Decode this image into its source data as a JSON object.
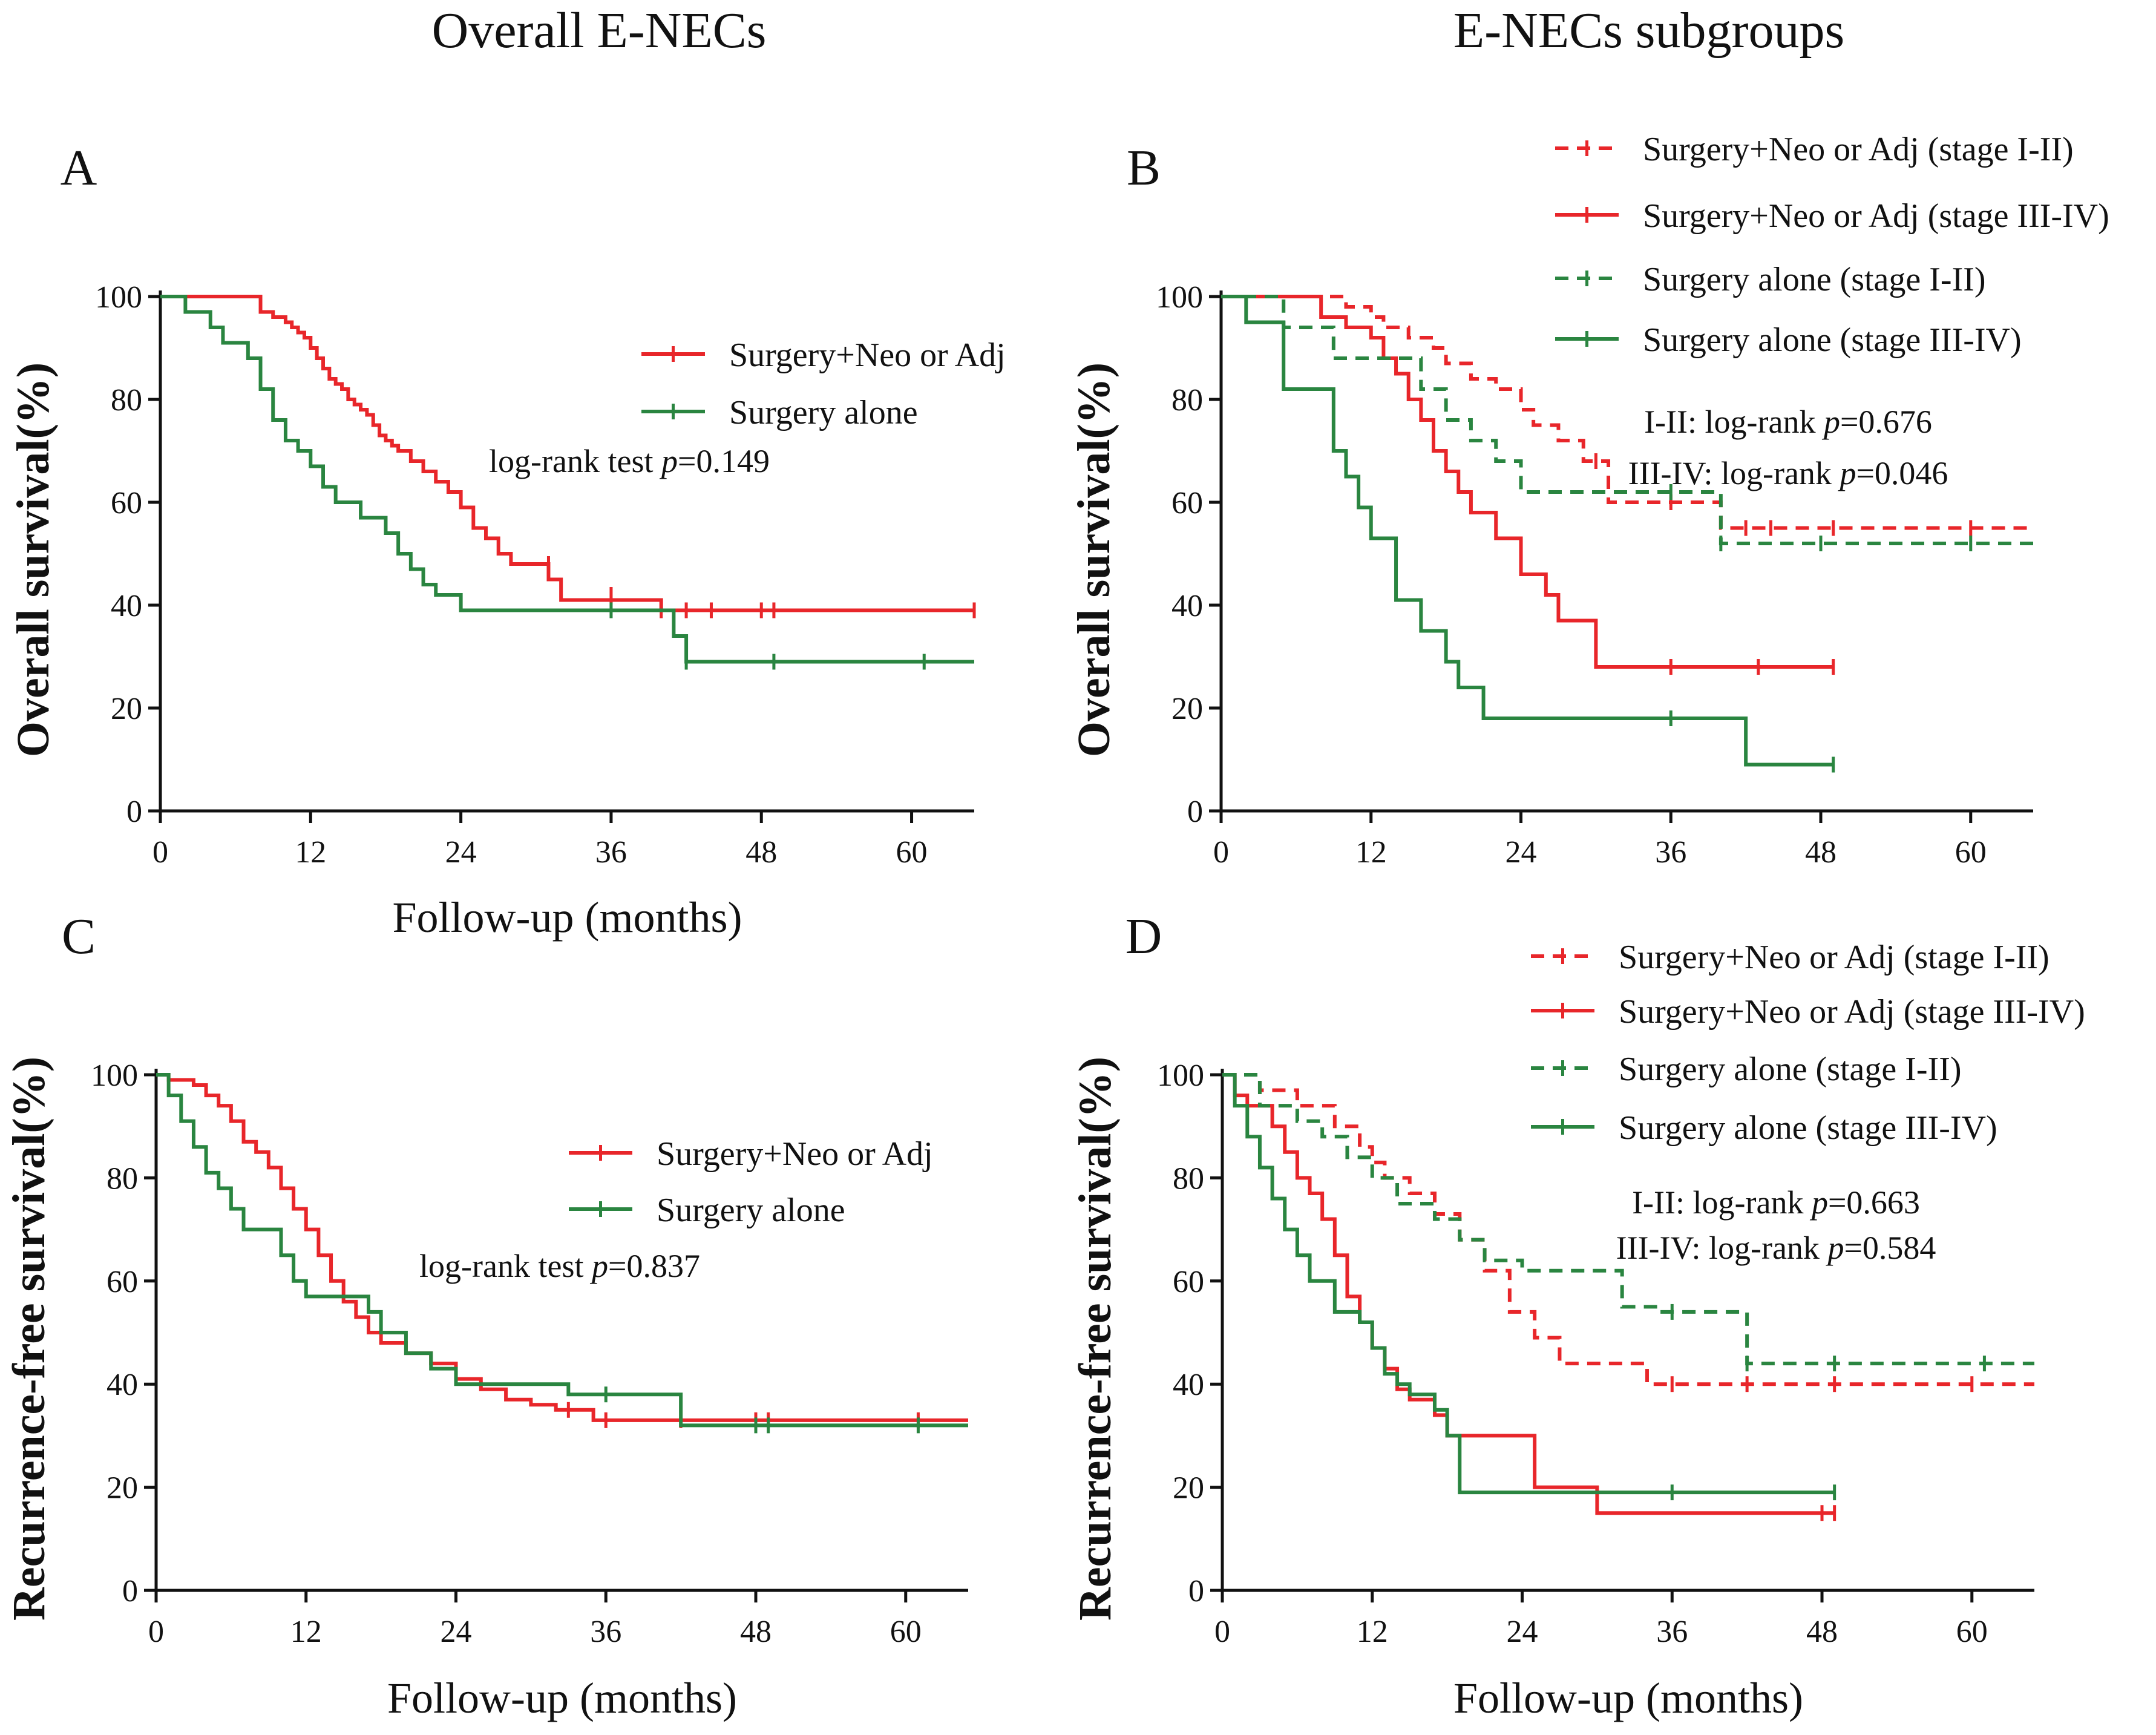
{
  "titles": {
    "left": "Overall E-NECs",
    "right": "E-NECs subgroups"
  },
  "colors": {
    "red": "#e8262a",
    "green": "#2a8540"
  },
  "chart_data": [
    {
      "panel": "A",
      "type": "line",
      "step": true,
      "xlabel": "Follow-up (months)",
      "ylabel": "Overall survival(%)",
      "xlim": [
        0,
        65
      ],
      "ylim": [
        0,
        100
      ],
      "xticks": [
        "0",
        "12",
        "24",
        "36",
        "48",
        "60"
      ],
      "yticks": [
        "0",
        "20",
        "40",
        "60",
        "80",
        "100"
      ],
      "legend_position": "top-right",
      "annotations": [
        {
          "prefix": "log-rank test  ",
          "p": "p",
          "value": "=0.149"
        }
      ],
      "series": [
        {
          "name": "Surgery+Neo or Adj",
          "color": "red",
          "dash": false,
          "x": [
            0,
            8,
            9,
            10,
            10.5,
            11,
            11.5,
            12,
            12.5,
            13,
            13.5,
            14,
            14.5,
            15,
            15.5,
            16,
            16.5,
            17,
            17.5,
            18,
            18.5,
            19,
            20,
            21,
            22,
            23,
            24,
            25,
            26,
            27,
            28,
            30,
            31,
            32,
            40,
            65
          ],
          "y": [
            100,
            97,
            96,
            95,
            94,
            93,
            92,
            90,
            88,
            86,
            84,
            83,
            82,
            80,
            79,
            78,
            77,
            75,
            73,
            72,
            71,
            70,
            68,
            66,
            64,
            62,
            59,
            55,
            53,
            50,
            48,
            48,
            45,
            41,
            39,
            39
          ],
          "censor_x": [
            31,
            36,
            40,
            42,
            44,
            48,
            49,
            65
          ],
          "censor_y": [
            48,
            42,
            39,
            39,
            39,
            39,
            39,
            39
          ]
        },
        {
          "name": "Surgery alone",
          "color": "green",
          "dash": false,
          "x": [
            0,
            2,
            4,
            5,
            7,
            8,
            9,
            10,
            11,
            12,
            13,
            14,
            16,
            18,
            19,
            20,
            21,
            22,
            24,
            40,
            41,
            42,
            65
          ],
          "y": [
            100,
            97,
            94,
            91,
            88,
            82,
            76,
            72,
            70,
            67,
            63,
            60,
            57,
            54,
            50,
            47,
            44,
            42,
            39,
            39,
            34,
            29,
            29
          ],
          "censor_x": [
            36,
            42,
            49,
            61
          ],
          "censor_y": [
            39,
            29,
            29,
            29
          ]
        }
      ]
    },
    {
      "panel": "B",
      "type": "line",
      "step": true,
      "xlabel": "",
      "ylabel": "Overall survival(%)",
      "xlim": [
        0,
        65
      ],
      "ylim": [
        0,
        100
      ],
      "xticks": [
        "0",
        "12",
        "24",
        "36",
        "48",
        "60"
      ],
      "yticks": [
        "0",
        "20",
        "40",
        "60",
        "80",
        "100"
      ],
      "legend_position": "top-right",
      "annotations": [
        {
          "prefix": "I-II: log-rank ",
          "p": "p",
          "value": "=0.676"
        },
        {
          "prefix": "III-IV: log-rank ",
          "p": "p",
          "value": "=0.046"
        }
      ],
      "series": [
        {
          "name": "Surgery+Neo or Adj (stage I-II)",
          "color": "red",
          "dash": true,
          "x": [
            0,
            8,
            10,
            12,
            13,
            15,
            17,
            18,
            20,
            22,
            24,
            25,
            27,
            29,
            31,
            40,
            65
          ],
          "y": [
            100,
            100,
            98,
            96,
            94,
            92,
            90,
            87,
            84,
            82,
            78,
            75,
            72,
            68,
            60,
            55,
            55
          ],
          "censor_x": [
            30,
            36,
            42,
            44,
            49,
            60
          ],
          "censor_y": [
            68,
            60,
            55,
            55,
            55,
            55
          ]
        },
        {
          "name": "Surgery+Neo or Adj (stage III-IV)",
          "color": "red",
          "dash": false,
          "x": [
            0,
            8,
            10,
            12,
            13,
            14,
            15,
            16,
            17,
            18,
            19,
            20,
            22,
            24,
            26,
            27,
            30,
            49
          ],
          "y": [
            100,
            96,
            94,
            92,
            88,
            85,
            80,
            76,
            70,
            66,
            62,
            58,
            53,
            46,
            42,
            37,
            28,
            28
          ],
          "censor_x": [
            36,
            43,
            49
          ],
          "censor_y": [
            28,
            28,
            28
          ]
        },
        {
          "name": "Surgery alone (stage I-II)",
          "color": "green",
          "dash": true,
          "x": [
            0,
            2,
            5,
            9,
            12,
            16,
            18,
            20,
            22,
            24,
            36,
            40,
            65
          ],
          "y": [
            100,
            100,
            94,
            88,
            88,
            82,
            76,
            72,
            68,
            62,
            62,
            52,
            52
          ],
          "censor_x": [
            36,
            40,
            48,
            60
          ],
          "censor_y": [
            62,
            52,
            52,
            52
          ]
        },
        {
          "name": "Surgery alone (stage III-IV)",
          "color": "green",
          "dash": false,
          "x": [
            0,
            2,
            5,
            9,
            10,
            11,
            12,
            14,
            16,
            18,
            19,
            21,
            36,
            42,
            49
          ],
          "y": [
            100,
            95,
            82,
            70,
            65,
            59,
            53,
            41,
            35,
            29,
            24,
            18,
            18,
            9,
            9
          ],
          "censor_x": [
            36,
            49
          ],
          "censor_y": [
            18,
            9
          ]
        }
      ]
    },
    {
      "panel": "C",
      "type": "line",
      "step": true,
      "xlabel": "Follow-up (months)",
      "ylabel": "Recurrence-free survival(%)",
      "xlim": [
        0,
        65
      ],
      "ylim": [
        0,
        100
      ],
      "xticks": [
        "0",
        "12",
        "24",
        "36",
        "48",
        "60"
      ],
      "yticks": [
        "0",
        "20",
        "40",
        "60",
        "80",
        "100"
      ],
      "legend_position": "top-right",
      "annotations": [
        {
          "prefix": "log-rank test  ",
          "p": "p",
          "value": "=0.837"
        }
      ],
      "series": [
        {
          "name": "Surgery+Neo or Adj",
          "color": "red",
          "dash": false,
          "x": [
            0,
            1,
            3,
            4,
            5,
            6,
            7,
            8,
            9,
            10,
            11,
            12,
            13,
            14,
            15,
            16,
            17,
            18,
            20,
            22,
            24,
            26,
            28,
            30,
            32,
            35,
            65
          ],
          "y": [
            100,
            99,
            98,
            96,
            94,
            91,
            87,
            85,
            82,
            78,
            74,
            70,
            65,
            60,
            56,
            53,
            50,
            48,
            46,
            44,
            41,
            39,
            37,
            36,
            35,
            33,
            33
          ],
          "censor_x": [
            33,
            36,
            42,
            48,
            49,
            61
          ],
          "censor_y": [
            35,
            33,
            33,
            33,
            33,
            33
          ]
        },
        {
          "name": "Surgery alone",
          "color": "green",
          "dash": false,
          "x": [
            0,
            1,
            2,
            3,
            4,
            5,
            6,
            7,
            10,
            11,
            12,
            14,
            17,
            18,
            20,
            22,
            24,
            33,
            35,
            42,
            65
          ],
          "y": [
            100,
            96,
            91,
            86,
            81,
            78,
            74,
            70,
            65,
            60,
            57,
            57,
            54,
            50,
            46,
            43,
            40,
            38,
            38,
            32,
            32
          ],
          "censor_x": [
            36,
            48,
            49,
            61
          ],
          "censor_y": [
            38,
            32,
            32,
            32
          ]
        }
      ]
    },
    {
      "panel": "D",
      "type": "line",
      "step": true,
      "xlabel": "Follow-up (months)",
      "ylabel": "Recurrence-free survival(%)",
      "xlim": [
        0,
        65
      ],
      "ylim": [
        0,
        100
      ],
      "xticks": [
        "0",
        "12",
        "24",
        "36",
        "48",
        "60"
      ],
      "yticks": [
        "0",
        "20",
        "40",
        "60",
        "80",
        "100"
      ],
      "legend_position": "top-right",
      "annotations": [
        {
          "prefix": "I-II: log-rank ",
          "p": "p",
          "value": "=0.663"
        },
        {
          "prefix": "III-IV: log-rank ",
          "p": "p",
          "value": "=0.584"
        }
      ],
      "series": [
        {
          "name": "Surgery+Neo or Adj (stage I-II)",
          "color": "red",
          "dash": true,
          "x": [
            0,
            3,
            6,
            9,
            11,
            12,
            13,
            15,
            17,
            19,
            21,
            23,
            25,
            27,
            34,
            42,
            65
          ],
          "y": [
            100,
            97,
            94,
            90,
            86,
            83,
            80,
            77,
            73,
            68,
            62,
            54,
            49,
            44,
            40,
            40,
            40
          ],
          "censor_x": [
            36,
            42,
            49,
            60
          ],
          "censor_y": [
            40,
            40,
            40,
            40
          ]
        },
        {
          "name": "Surgery+Neo or Adj (stage III-IV)",
          "color": "red",
          "dash": false,
          "x": [
            0,
            1,
            2,
            4,
            5,
            6,
            7,
            8,
            9,
            10,
            11,
            12,
            13,
            14,
            15,
            17,
            18,
            24,
            25,
            30,
            49
          ],
          "y": [
            100,
            96,
            94,
            90,
            85,
            80,
            77,
            72,
            65,
            57,
            52,
            47,
            43,
            39,
            37,
            34,
            30,
            30,
            20,
            15,
            15
          ],
          "censor_x": [
            48,
            49
          ],
          "censor_y": [
            15,
            15
          ]
        },
        {
          "name": "Surgery alone (stage I-II)",
          "color": "green",
          "dash": true,
          "x": [
            0,
            3,
            6,
            8,
            10,
            12,
            14,
            17,
            19,
            21,
            24,
            32,
            35,
            42,
            65
          ],
          "y": [
            100,
            94,
            91,
            88,
            84,
            80,
            75,
            72,
            68,
            64,
            62,
            55,
            54,
            44,
            44
          ],
          "censor_x": [
            36,
            42,
            49,
            61
          ],
          "censor_y": [
            54,
            44,
            44,
            44
          ]
        },
        {
          "name": "Surgery alone (stage III-IV)",
          "color": "green",
          "dash": false,
          "x": [
            0,
            1,
            2,
            3,
            4,
            5,
            6,
            7,
            9,
            11,
            12,
            13,
            14,
            15,
            16,
            17,
            18,
            19,
            49
          ],
          "y": [
            100,
            94,
            88,
            82,
            76,
            70,
            65,
            60,
            54,
            52,
            47,
            42,
            40,
            38,
            38,
            35,
            30,
            19,
            19
          ],
          "censor_x": [
            36,
            49
          ],
          "censor_y": [
            19,
            19
          ]
        }
      ]
    }
  ]
}
